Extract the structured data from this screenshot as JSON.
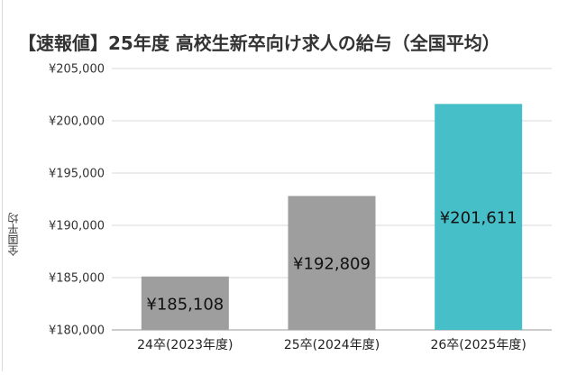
{
  "chart_data": {
    "type": "bar",
    "title": "【速報値】25年度 高校生新卒向け求人の給与（全国平均）",
    "ylabel": "全国平均",
    "xlabel": "",
    "categories": [
      "24卒(2023年度)",
      "25卒(2024年度)",
      "26卒(2025年度)"
    ],
    "values": [
      185108,
      192809,
      201611
    ],
    "data_labels": [
      "¥185,108",
      "¥192,809",
      "¥201,611"
    ],
    "ylim": [
      180000,
      205000
    ],
    "yticks": [
      180000,
      185000,
      190000,
      195000,
      200000,
      205000
    ],
    "ytick_labels": [
      "¥180,000",
      "¥185,000",
      "¥190,000",
      "¥195,000",
      "¥200,000",
      "¥205,000"
    ],
    "grid": true,
    "colors": [
      "#9e9e9e",
      "#9e9e9e",
      "#47bfc8"
    ],
    "grid_color": "#d9d9d9"
  }
}
